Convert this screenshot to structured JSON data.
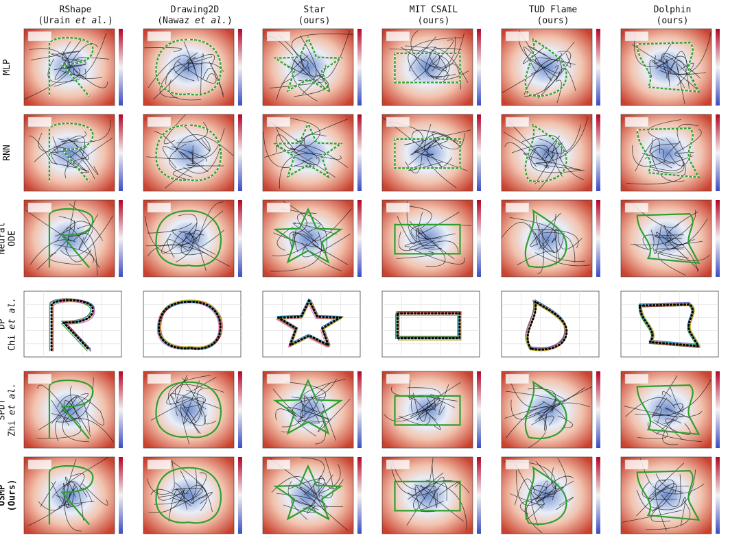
{
  "columns": [
    {
      "name": "RShape",
      "source": [
        {
          "text": "(Urain "
        },
        {
          "text": "et al.",
          "italic": true
        },
        {
          "text": ")"
        }
      ]
    },
    {
      "name": "Drawing2D",
      "source": [
        {
          "text": "(Nawaz "
        },
        {
          "text": "et al.",
          "italic": true
        },
        {
          "text": ")"
        }
      ]
    },
    {
      "name": "Star",
      "source": [
        {
          "text": "(ours)"
        }
      ]
    },
    {
      "name": "MIT CSAIL",
      "source": [
        {
          "text": "(ours)"
        }
      ]
    },
    {
      "name": "TUD Flame",
      "source": [
        {
          "text": "(ours)"
        }
      ]
    },
    {
      "name": "Dolphin",
      "source": [
        {
          "text": "(ours)"
        }
      ]
    }
  ],
  "rows": [
    {
      "lines": [
        [
          {
            "text": "MLP"
          }
        ]
      ]
    },
    {
      "lines": [
        [
          {
            "text": "RNN"
          }
        ]
      ]
    },
    {
      "lines": [
        [
          {
            "text": "Neural"
          }
        ],
        [
          {
            "text": "ODE"
          }
        ]
      ]
    },
    {
      "lines": [
        [
          {
            "text": "DP"
          }
        ],
        [
          {
            "text": "Chi "
          },
          {
            "text": "et al.",
            "italic": true
          }
        ]
      ],
      "policy": true
    },
    {
      "lines": [
        [
          {
            "text": "SPDT"
          }
        ],
        [
          {
            "text": "Zhi "
          },
          {
            "text": "et al.",
            "italic": true
          }
        ]
      ]
    },
    {
      "lines": [
        [
          {
            "text": "OSMP"
          }
        ],
        [
          {
            "text": "(Ours)"
          }
        ]
      ],
      "bold": true
    }
  ]
}
